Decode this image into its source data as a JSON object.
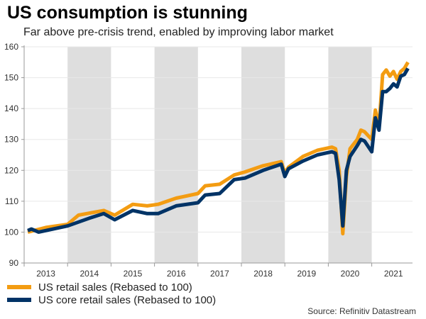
{
  "title": "US consumption is stunning",
  "subtitle": "Far above pre-crisis trend, enabled by improving labor market",
  "source": "Source: Refinitiv Datastream",
  "chart_data": {
    "type": "line",
    "ylim": [
      90,
      160
    ],
    "yticks": [
      "90",
      "100",
      "110",
      "120",
      "130",
      "140",
      "150",
      "160"
    ],
    "xticks": [
      "2013",
      "2014",
      "2015",
      "2016",
      "2017",
      "2018",
      "2019",
      "2020",
      "2021"
    ],
    "shaded_years": [
      "2014",
      "2016",
      "2018",
      "2020"
    ],
    "grid": true,
    "legend_placement": "bottom-left",
    "series": [
      {
        "name": "US retail sales (Rebased to 100)",
        "color": "#f39c12",
        "points": [
          [
            "2013-01",
            100
          ],
          [
            "2013-06",
            101.5
          ],
          [
            "2013-12",
            102.5
          ],
          [
            "2014-03",
            105.5
          ],
          [
            "2014-10",
            107
          ],
          [
            "2015-01",
            105.5
          ],
          [
            "2015-06",
            109
          ],
          [
            "2015-10",
            108.5
          ],
          [
            "2016-01",
            109
          ],
          [
            "2016-06",
            111
          ],
          [
            "2016-12",
            112.5
          ],
          [
            "2017-02",
            115
          ],
          [
            "2017-06",
            115.5
          ],
          [
            "2017-10",
            118.5
          ],
          [
            "2018-01",
            119.5
          ],
          [
            "2018-06",
            121.5
          ],
          [
            "2018-11",
            122.8
          ],
          [
            "2018-12",
            119
          ],
          [
            "2019-01",
            121
          ],
          [
            "2019-05",
            124.5
          ],
          [
            "2019-09",
            126.5
          ],
          [
            "2020-01",
            127.5
          ],
          [
            "2020-02",
            127
          ],
          [
            "2020-03",
            120
          ],
          [
            "2020-04",
            99.5
          ],
          [
            "2020-05",
            118
          ],
          [
            "2020-06",
            127
          ],
          [
            "2020-08",
            130
          ],
          [
            "2020-09",
            133
          ],
          [
            "2020-10",
            132.5
          ],
          [
            "2020-12",
            130
          ],
          [
            "2021-01",
            139.5
          ],
          [
            "2021-02",
            134
          ],
          [
            "2021-03",
            151
          ],
          [
            "2021-04",
            152.5
          ],
          [
            "2021-05",
            150.5
          ],
          [
            "2021-06",
            152
          ],
          [
            "2021-07",
            149.5
          ],
          [
            "2021-08",
            152
          ],
          [
            "2021-09",
            153
          ],
          [
            "2021-10",
            155
          ]
        ]
      },
      {
        "name": "US core retail sales (Rebased to 100)",
        "color": "#003366",
        "points": [
          [
            "2013-01",
            100.5
          ],
          [
            "2013-02",
            101
          ],
          [
            "2013-04",
            100
          ],
          [
            "2013-12",
            102
          ],
          [
            "2014-06",
            104.5
          ],
          [
            "2014-10",
            106
          ],
          [
            "2015-01",
            104
          ],
          [
            "2015-06",
            107
          ],
          [
            "2015-10",
            106
          ],
          [
            "2016-01",
            106
          ],
          [
            "2016-06",
            108.5
          ],
          [
            "2016-12",
            109.5
          ],
          [
            "2017-02",
            112
          ],
          [
            "2017-06",
            112.5
          ],
          [
            "2017-10",
            117
          ],
          [
            "2018-01",
            117.5
          ],
          [
            "2018-06",
            120
          ],
          [
            "2018-11",
            122
          ],
          [
            "2018-12",
            118
          ],
          [
            "2019-01",
            120.5
          ],
          [
            "2019-05",
            123
          ],
          [
            "2019-09",
            125
          ],
          [
            "2020-01",
            126
          ],
          [
            "2020-02",
            125.5
          ],
          [
            "2020-03",
            117
          ],
          [
            "2020-04",
            102
          ],
          [
            "2020-05",
            120
          ],
          [
            "2020-06",
            124.5
          ],
          [
            "2020-08",
            128
          ],
          [
            "2020-09",
            130
          ],
          [
            "2020-10",
            129.5
          ],
          [
            "2020-12",
            126
          ],
          [
            "2021-01",
            137
          ],
          [
            "2021-02",
            133
          ],
          [
            "2021-03",
            145.5
          ],
          [
            "2021-04",
            145.5
          ],
          [
            "2021-05",
            146.5
          ],
          [
            "2021-06",
            148
          ],
          [
            "2021-07",
            147
          ],
          [
            "2021-08",
            150.5
          ],
          [
            "2021-09",
            151
          ],
          [
            "2021-10",
            153
          ]
        ]
      }
    ]
  }
}
